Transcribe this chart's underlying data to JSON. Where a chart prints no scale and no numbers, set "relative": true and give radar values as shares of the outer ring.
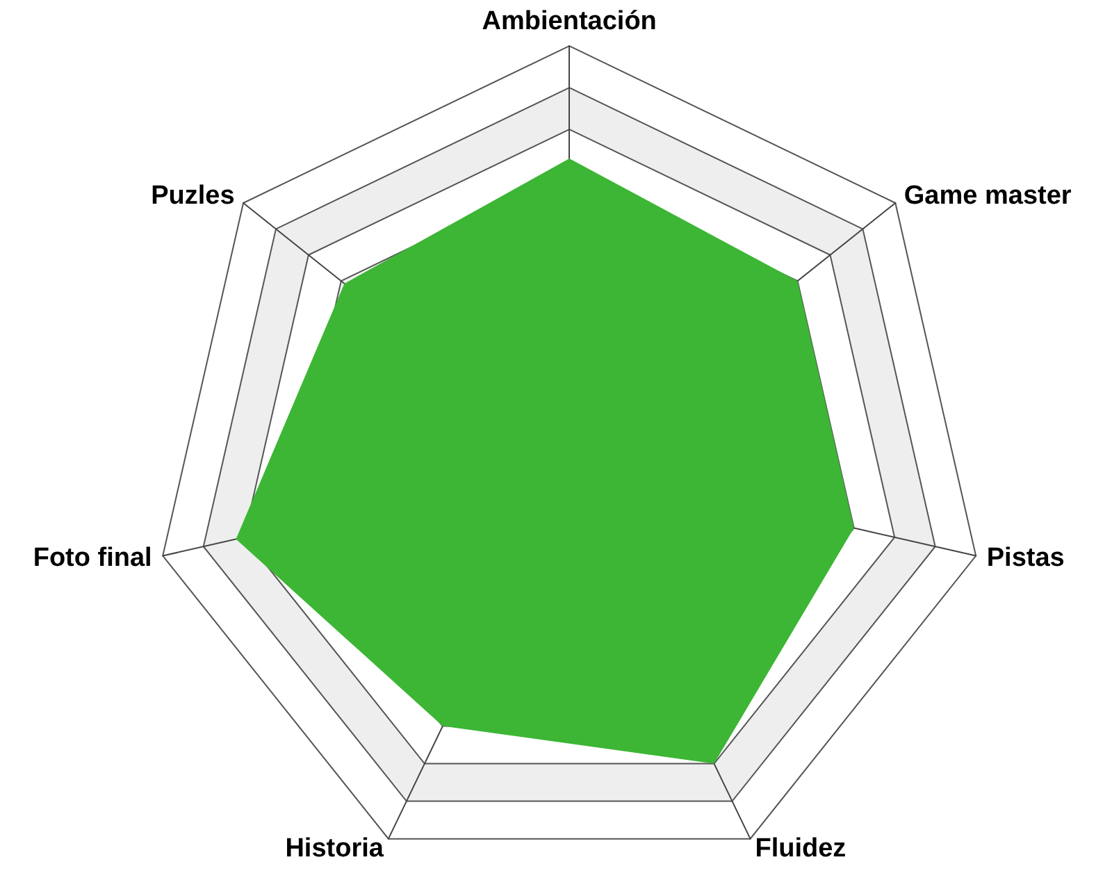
{
  "chart_data": {
    "type": "radar",
    "relative": true,
    "categories": [
      "Ambientación",
      "Game master",
      "Pistas",
      "Fluidez",
      "Historia",
      "Foto final",
      "Puzles"
    ],
    "series": [
      {
        "color": "#3cb634",
        "values": [
          0.73,
          0.7,
          0.7,
          0.8,
          0.7,
          0.82,
          0.69
        ]
      }
    ]
  }
}
